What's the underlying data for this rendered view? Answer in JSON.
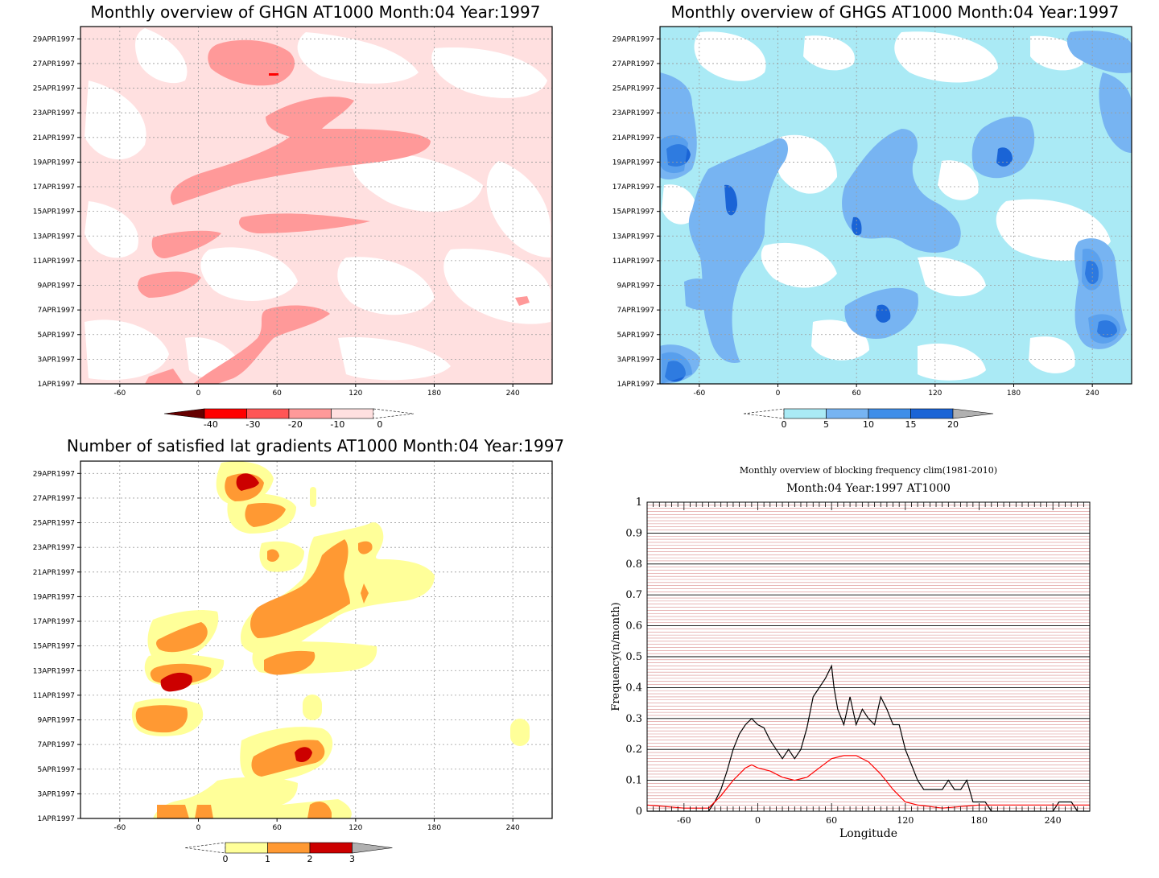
{
  "panels": {
    "ghgn": {
      "title": "Monthly overview of GHGN AT1000 Month:04 Year:1997",
      "colorbar": {
        "labels": [
          "-40",
          "-30",
          "-20",
          "-10",
          "0"
        ],
        "colors": [
          "#660000",
          "#ff0000",
          "#ff5555",
          "#ff9999",
          "#ffe0e0"
        ]
      }
    },
    "ghgs": {
      "title": "Monthly overview of GHGS AT1000 Month:04 Year:1997",
      "colorbar": {
        "labels": [
          "0",
          "5",
          "10",
          "15",
          "20"
        ],
        "colors": [
          "#aaeaf5",
          "#77b4f2",
          "#3f8ee9",
          "#1a64d6",
          "#b0b0b0"
        ]
      }
    },
    "gradients": {
      "title": "Number of satisfied lat gradients AT1000 Month:04 Year:1997",
      "colorbar": {
        "labels": [
          "0",
          "1",
          "2",
          "3"
        ],
        "colors": [
          "#ffff99",
          "#ff9933",
          "#cc0000",
          "#b0b0b0"
        ]
      }
    }
  },
  "shared_axes": {
    "x_ticks": [
      "-60",
      "0",
      "60",
      "120",
      "180",
      "240"
    ],
    "y_ticks": [
      "1APR1997",
      "3APR1997",
      "5APR1997",
      "7APR1997",
      "9APR1997",
      "11APR1997",
      "13APR1997",
      "15APR1997",
      "17APR1997",
      "19APR1997",
      "21APR1997",
      "23APR1997",
      "25APR1997",
      "27APR1997",
      "29APR1997"
    ]
  },
  "chart_data": [
    {
      "type": "heatmap",
      "title": "Monthly overview of GHGN AT1000 Month:04 Year:1997",
      "xlim": [
        -90,
        270
      ],
      "x_ticks": [
        -60,
        0,
        60,
        120,
        180,
        240
      ],
      "y_ticks": [
        "1APR1997",
        "3APR1997",
        "5APR1997",
        "7APR1997",
        "9APR1997",
        "11APR1997",
        "13APR1997",
        "15APR1997",
        "17APR1997",
        "19APR1997",
        "21APR1997",
        "23APR1997",
        "25APR1997",
        "27APR1997",
        "29APR1997"
      ],
      "levels": [
        -40,
        -30,
        -20,
        -10,
        0
      ],
      "grid": true
    },
    {
      "type": "heatmap",
      "title": "Monthly overview of GHGS AT1000 Month:04 Year:1997",
      "xlim": [
        -90,
        270
      ],
      "x_ticks": [
        -60,
        0,
        60,
        120,
        180,
        240
      ],
      "levels": [
        0,
        5,
        10,
        15,
        20
      ],
      "grid": true
    },
    {
      "type": "heatmap",
      "title": "Number of satisfied lat gradients AT1000 Month:04 Year:1997",
      "xlim": [
        -90,
        270
      ],
      "x_ticks": [
        -60,
        0,
        60,
        120,
        180,
        240
      ],
      "levels": [
        0,
        1,
        2,
        3
      ],
      "grid": true
    },
    {
      "type": "line",
      "title": "Monthly overview of blocking frequency clim(1981-2010)",
      "subtitle": "Month:04 Year:1997  AT1000",
      "xlabel": "Longitude",
      "ylabel": "Frequency(n/month)",
      "xlim": [
        -90,
        270
      ],
      "ylim": [
        0,
        1
      ],
      "x_ticks": [
        "-60",
        "0",
        "60",
        "120",
        "180",
        "240"
      ],
      "y_ticks": [
        "0",
        "0.1",
        "0.2",
        "0.3",
        "0.4",
        "0.5",
        "0.6",
        "0.7",
        "0.8",
        "0.9",
        "1"
      ],
      "grid": true,
      "series": [
        {
          "color": "#000000",
          "x": [
            -90,
            -40,
            -35,
            -30,
            -25,
            -20,
            -15,
            -10,
            -5,
            0,
            5,
            10,
            15,
            20,
            25,
            30,
            35,
            40,
            45,
            50,
            55,
            60,
            62,
            65,
            70,
            75,
            80,
            85,
            90,
            95,
            100,
            105,
            110,
            115,
            120,
            125,
            130,
            135,
            140,
            145,
            150,
            155,
            160,
            165,
            170,
            175,
            180,
            185,
            190,
            200,
            240,
            245,
            250,
            255,
            260,
            270
          ],
          "y": [
            0.0,
            0.0,
            0.03,
            0.07,
            0.13,
            0.2,
            0.25,
            0.28,
            0.3,
            0.28,
            0.27,
            0.23,
            0.2,
            0.17,
            0.2,
            0.17,
            0.2,
            0.27,
            0.37,
            0.4,
            0.43,
            0.47,
            0.4,
            0.33,
            0.28,
            0.37,
            0.28,
            0.33,
            0.3,
            0.28,
            0.37,
            0.33,
            0.28,
            0.28,
            0.2,
            0.15,
            0.1,
            0.07,
            0.07,
            0.07,
            0.07,
            0.1,
            0.07,
            0.07,
            0.1,
            0.03,
            0.03,
            0.03,
            0.0,
            0.0,
            0.0,
            0.03,
            0.03,
            0.03,
            0.0,
            0.0
          ]
        },
        {
          "color": "#ff0000",
          "x": [
            -90,
            -60,
            -40,
            -30,
            -20,
            -10,
            -5,
            0,
            10,
            20,
            30,
            40,
            50,
            60,
            70,
            80,
            90,
            100,
            110,
            120,
            130,
            140,
            150,
            180,
            220,
            270
          ],
          "y": [
            0.02,
            0.01,
            0.01,
            0.05,
            0.1,
            0.14,
            0.15,
            0.14,
            0.13,
            0.11,
            0.1,
            0.11,
            0.14,
            0.17,
            0.18,
            0.18,
            0.16,
            0.12,
            0.07,
            0.03,
            0.02,
            0.015,
            0.01,
            0.02,
            0.02,
            0.02
          ]
        }
      ]
    }
  ]
}
